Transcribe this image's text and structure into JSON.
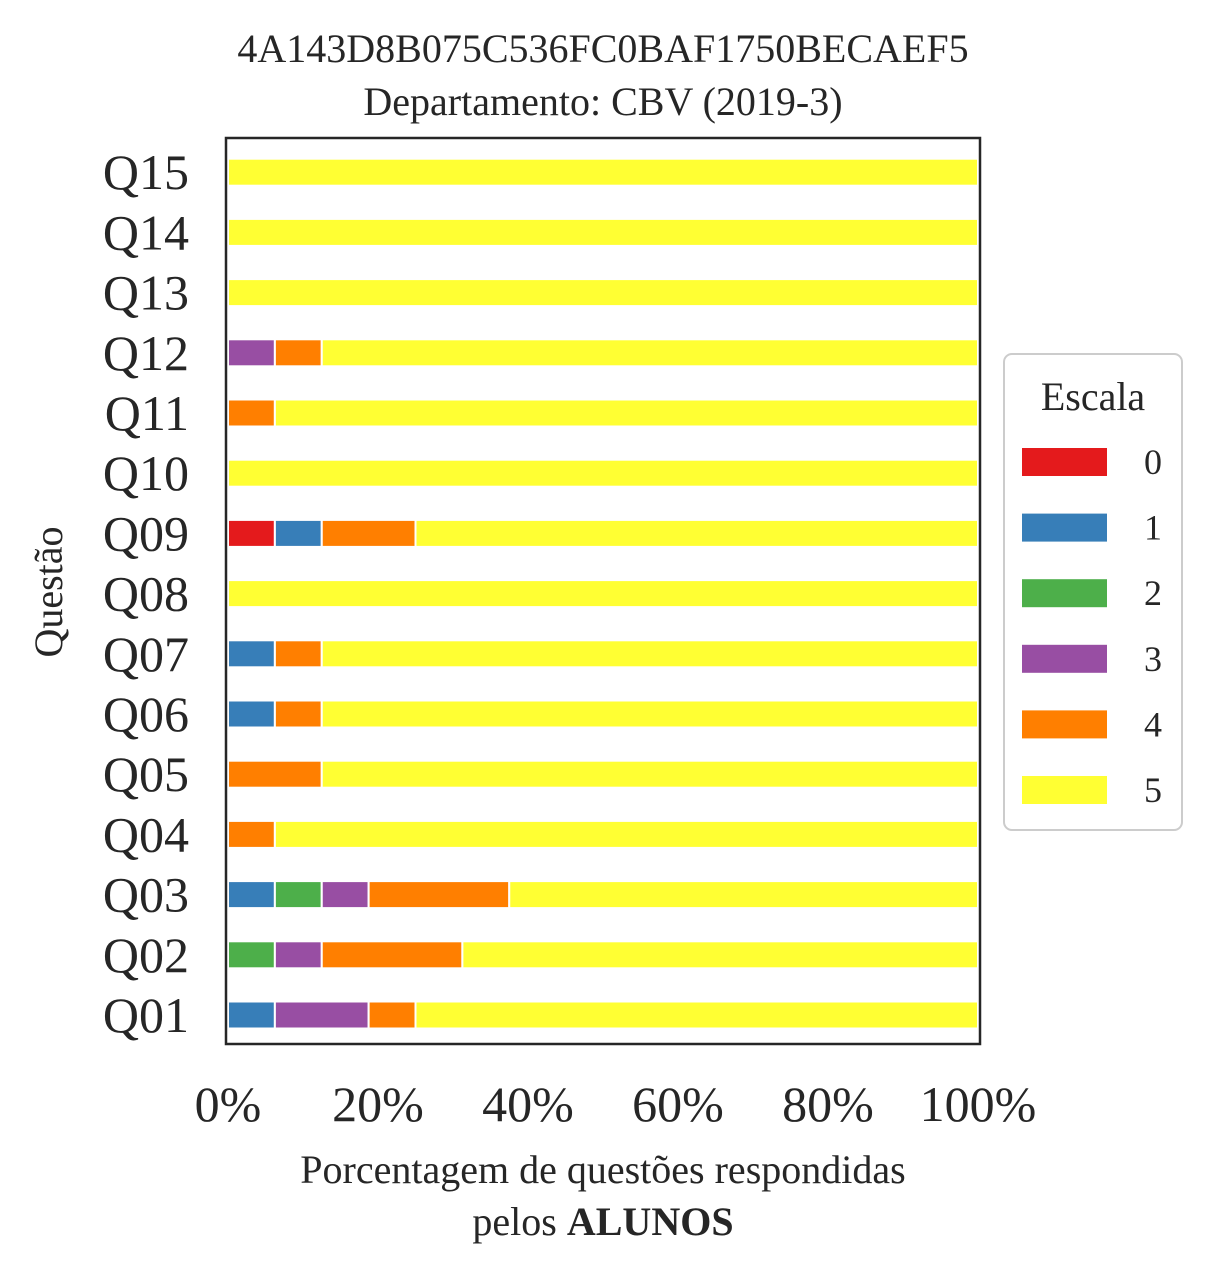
{
  "chart_data": {
    "type": "bar",
    "orientation": "horizontal",
    "stacked": true,
    "title": "4A143D8B075C536FC0BAF1750BECAEF5",
    "subtitle": "Departamento: CBV (2019-3)",
    "xlabel_line1": "Porcentagem de questões respondidas",
    "xlabel_line2_prefix": "pelos ",
    "xlabel_line2_bold": "ALUNOS",
    "ylabel": "Questão",
    "xlim": [
      0,
      100
    ],
    "xticks": [
      "0%",
      "20%",
      "40%",
      "60%",
      "80%",
      "100%"
    ],
    "categories": [
      "Q01",
      "Q02",
      "Q03",
      "Q04",
      "Q05",
      "Q06",
      "Q07",
      "Q08",
      "Q09",
      "Q10",
      "Q11",
      "Q12",
      "Q13",
      "Q14",
      "Q15"
    ],
    "legend": {
      "title": "Escala",
      "position": "right"
    },
    "series": [
      {
        "name": "0",
        "color": "#e41a1c",
        "values": [
          0,
          0,
          0,
          0,
          0,
          0,
          0,
          0,
          6.25,
          0,
          0,
          0,
          0,
          0,
          0
        ]
      },
      {
        "name": "1",
        "color": "#377eb8",
        "values": [
          6.25,
          0,
          6.25,
          0,
          0,
          6.25,
          6.25,
          0,
          6.25,
          0,
          0,
          0,
          0,
          0,
          0
        ]
      },
      {
        "name": "2",
        "color": "#4daf4a",
        "values": [
          0,
          6.25,
          6.25,
          0,
          0,
          0,
          0,
          0,
          0,
          0,
          0,
          0,
          0,
          0,
          0
        ]
      },
      {
        "name": "3",
        "color": "#984ea3",
        "values": [
          12.5,
          6.25,
          6.25,
          0,
          0,
          0,
          0,
          0,
          0,
          0,
          0,
          6.25,
          0,
          0,
          0
        ]
      },
      {
        "name": "4",
        "color": "#ff7f00",
        "values": [
          6.25,
          18.75,
          18.75,
          6.25,
          12.5,
          6.25,
          6.25,
          0,
          12.5,
          0,
          6.25,
          6.25,
          0,
          0,
          0
        ]
      },
      {
        "name": "5",
        "color": "#ffff33",
        "values": [
          75,
          68.75,
          62.5,
          93.75,
          87.5,
          87.5,
          87.5,
          100,
          75,
          100,
          93.75,
          87.5,
          100,
          100,
          100
        ]
      }
    ]
  }
}
